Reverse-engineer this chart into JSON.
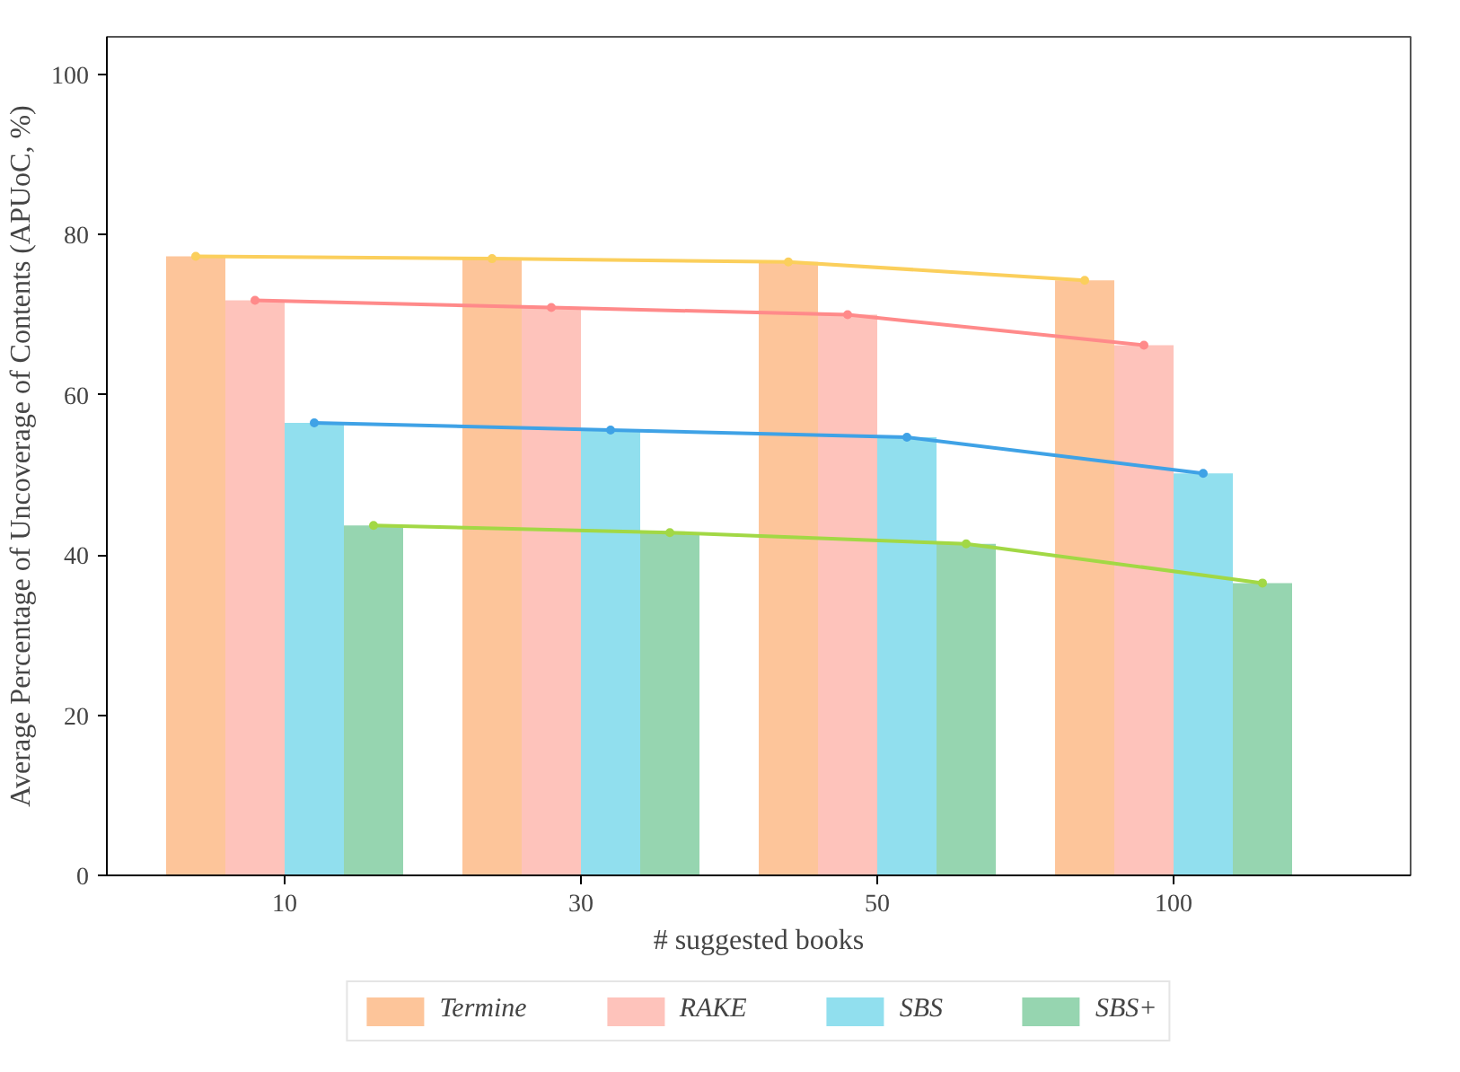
{
  "chart_data": {
    "type": "bar",
    "xlabel": "# suggested books",
    "ylabel": "Average Percentage of Uncoverage of Contents (APUoC, %)",
    "categories": [
      "10",
      "30",
      "50",
      "100"
    ],
    "series": [
      {
        "name": "Termine",
        "color": "#fdc59a",
        "values": [
          77.3,
          77.0,
          76.6,
          74.3
        ]
      },
      {
        "name": "RAKE",
        "color": "#fec3bb",
        "values": [
          71.8,
          70.9,
          70.0,
          66.2
        ]
      },
      {
        "name": "SBS",
        "color": "#91dfee",
        "values": [
          56.5,
          55.6,
          54.7,
          50.2
        ]
      },
      {
        "name": "SBS+",
        "color": "#96d5b0",
        "values": [
          43.7,
          42.8,
          41.4,
          36.5
        ]
      },
      {
        "type": "line",
        "color": "#fbcf5c",
        "values": [
          77.3,
          77.0,
          76.6,
          74.3
        ]
      },
      {
        "type": "line",
        "color": "#ff8a8a",
        "values": [
          71.8,
          70.9,
          70.0,
          66.2
        ]
      },
      {
        "type": "line",
        "color": "#3fa2e6",
        "values": [
          56.5,
          55.6,
          54.7,
          50.2
        ]
      },
      {
        "type": "line",
        "color": "#a2d845",
        "values": [
          43.7,
          42.8,
          41.4,
          36.5
        ]
      }
    ],
    "ylim": [
      0,
      104.7
    ],
    "yticks": [
      0,
      20,
      40,
      60,
      80,
      100
    ],
    "grid": false,
    "legend": "bottom",
    "marker": "circle"
  }
}
